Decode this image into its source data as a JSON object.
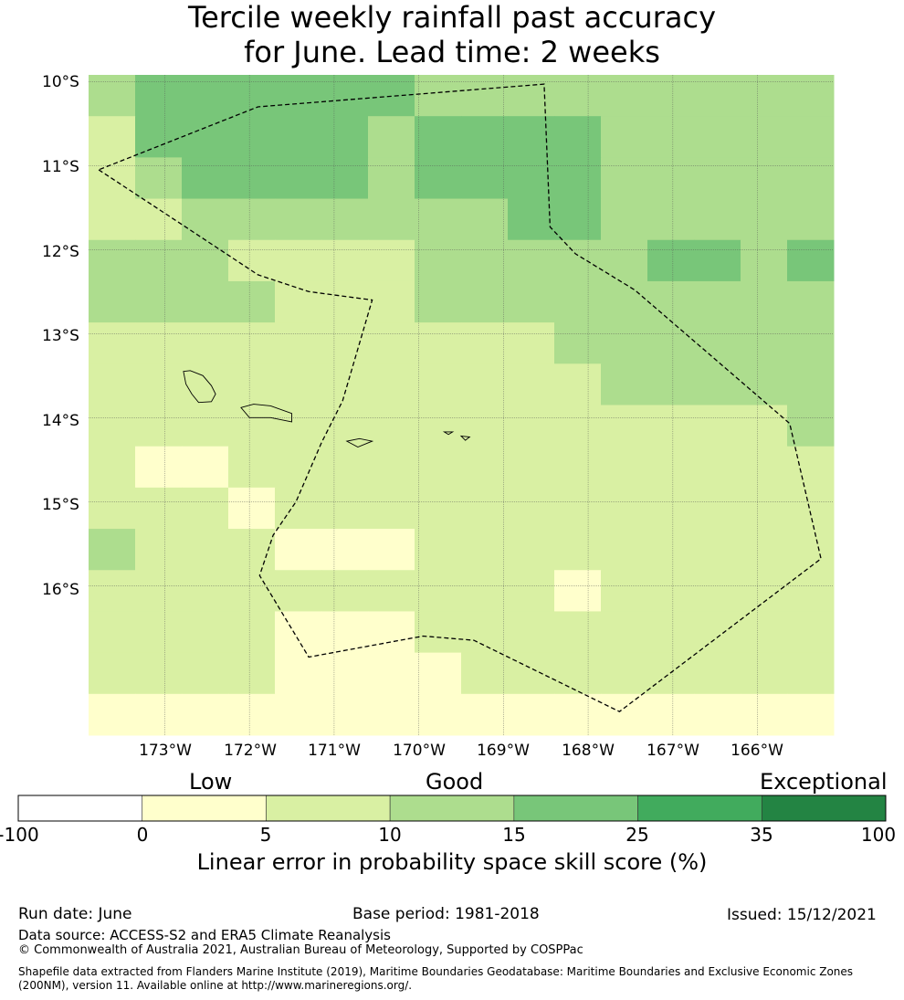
{
  "title_lines": [
    "Tercile weekly rainfall past accuracy",
    "for June. Lead time: 2 weeks"
  ],
  "lat_labels": [
    "10°S",
    "11°S",
    "12°S",
    "13°S",
    "14°S",
    "15°S",
    "16°S"
  ],
  "lon_labels": [
    "173°W",
    "172°W",
    "171°W",
    "170°W",
    "169°W",
    "168°W",
    "167°W",
    "166°W"
  ],
  "map": {
    "extent": {
      "lon_min": -173.9,
      "lon_max": -165.1,
      "lat_min": -17.78,
      "lat_max": -9.92
    },
    "lat_ticks": [
      -10,
      -11,
      -12,
      -13,
      -14,
      -15,
      -16
    ],
    "lon_ticks": [
      -173,
      -172,
      -171,
      -170,
      -169,
      -168,
      -167,
      -166
    ],
    "cell_size_deg": 0.5556,
    "skill_class_grid": [
      [
        2,
        3,
        3,
        3,
        3,
        3,
        3,
        2,
        2,
        2,
        2,
        2,
        2,
        2,
        2,
        2
      ],
      [
        1,
        3,
        3,
        3,
        3,
        3,
        2,
        3,
        3,
        3,
        3,
        2,
        2,
        2,
        2,
        2
      ],
      [
        1,
        2,
        3,
        3,
        3,
        3,
        2,
        3,
        3,
        3,
        3,
        2,
        2,
        2,
        2,
        2
      ],
      [
        1,
        1,
        2,
        2,
        2,
        2,
        2,
        2,
        2,
        3,
        3,
        2,
        2,
        2,
        2,
        2
      ],
      [
        2,
        2,
        2,
        1,
        1,
        1,
        1,
        2,
        2,
        2,
        2,
        2,
        3,
        3,
        2,
        3
      ],
      [
        2,
        2,
        2,
        2,
        1,
        1,
        1,
        2,
        2,
        2,
        2,
        2,
        2,
        2,
        2,
        2
      ],
      [
        1,
        1,
        1,
        1,
        1,
        1,
        1,
        1,
        1,
        1,
        2,
        2,
        2,
        2,
        2,
        2
      ],
      [
        1,
        1,
        1,
        1,
        1,
        1,
        1,
        1,
        1,
        1,
        1,
        2,
        2,
        2,
        2,
        2
      ],
      [
        1,
        1,
        1,
        1,
        1,
        1,
        1,
        1,
        1,
        1,
        1,
        1,
        1,
        1,
        1,
        2
      ],
      [
        1,
        0,
        0,
        1,
        1,
        1,
        1,
        1,
        1,
        1,
        1,
        1,
        1,
        1,
        1,
        1
      ],
      [
        1,
        1,
        1,
        0,
        1,
        1,
        1,
        1,
        1,
        1,
        1,
        1,
        1,
        1,
        1,
        1
      ],
      [
        2,
        1,
        1,
        1,
        0,
        0,
        0,
        1,
        1,
        1,
        1,
        1,
        1,
        1,
        1,
        1
      ],
      [
        1,
        1,
        1,
        1,
        1,
        1,
        1,
        1,
        1,
        1,
        0,
        1,
        1,
        1,
        1,
        1
      ],
      [
        1,
        1,
        1,
        1,
        0,
        0,
        0,
        1,
        1,
        1,
        1,
        1,
        1,
        1,
        1,
        1
      ],
      [
        1,
        1,
        1,
        1,
        0,
        0,
        0,
        0,
        1,
        1,
        1,
        1,
        1,
        1,
        1,
        1
      ],
      [
        0,
        0,
        0,
        0,
        0,
        0,
        0,
        0,
        0,
        0,
        0,
        0,
        0,
        0,
        0,
        0
      ]
    ],
    "eez_boundary": [
      [
        -173.78,
        -11.05
      ],
      [
        -172.8,
        -11.7
      ],
      [
        -171.9,
        -12.3
      ],
      [
        -171.3,
        -12.5
      ],
      [
        -170.55,
        -12.6
      ],
      [
        -170.9,
        -13.8
      ],
      [
        -171.15,
        -14.3
      ],
      [
        -171.45,
        -15.0
      ],
      [
        -171.72,
        -15.4
      ],
      [
        -171.88,
        -15.88
      ],
      [
        -171.3,
        -16.85
      ],
      [
        -169.95,
        -16.6
      ],
      [
        -169.35,
        -16.65
      ],
      [
        -167.63,
        -17.5
      ],
      [
        -165.25,
        -15.68
      ],
      [
        -165.62,
        -14.07
      ],
      [
        -167.45,
        -12.48
      ],
      [
        -168.15,
        -12.05
      ],
      [
        -168.45,
        -11.73
      ],
      [
        -168.52,
        -10.03
      ],
      [
        -171.9,
        -10.3
      ],
      [
        -173.78,
        -11.05
      ]
    ],
    "islands": [
      {
        "name": "Savaii",
        "coords": [
          [
            -172.78,
            -13.45
          ],
          [
            -172.7,
            -13.44
          ],
          [
            -172.55,
            -13.5
          ],
          [
            -172.45,
            -13.62
          ],
          [
            -172.4,
            -13.72
          ],
          [
            -172.45,
            -13.81
          ],
          [
            -172.6,
            -13.82
          ],
          [
            -172.68,
            -13.72
          ],
          [
            -172.75,
            -13.6
          ],
          [
            -172.78,
            -13.45
          ]
        ]
      },
      {
        "name": "Upolu",
        "coords": [
          [
            -172.1,
            -13.88
          ],
          [
            -171.95,
            -13.84
          ],
          [
            -171.75,
            -13.86
          ],
          [
            -171.5,
            -13.95
          ],
          [
            -171.5,
            -14.05
          ],
          [
            -171.75,
            -14.0
          ],
          [
            -172.0,
            -14.0
          ],
          [
            -172.1,
            -13.88
          ]
        ]
      },
      {
        "name": "Tutuila",
        "coords": [
          [
            -170.85,
            -14.28
          ],
          [
            -170.7,
            -14.25
          ],
          [
            -170.55,
            -14.28
          ],
          [
            -170.72,
            -14.35
          ],
          [
            -170.85,
            -14.28
          ]
        ]
      },
      {
        "name": "Ofu",
        "coords": [
          [
            -169.7,
            -14.17
          ],
          [
            -169.6,
            -14.17
          ],
          [
            -169.65,
            -14.2
          ],
          [
            -169.7,
            -14.17
          ]
        ]
      },
      {
        "name": "Tau",
        "coords": [
          [
            -169.5,
            -14.22
          ],
          [
            -169.4,
            -14.23
          ],
          [
            -169.45,
            -14.27
          ],
          [
            -169.5,
            -14.22
          ]
        ]
      }
    ]
  },
  "colorbar": {
    "headings": [
      "Low",
      "Good",
      "Exceptional"
    ],
    "ticks": [
      "-100",
      "0",
      "5",
      "10",
      "15",
      "25",
      "35",
      "100"
    ],
    "colors": [
      "#ffffff",
      "#ffffcc",
      "#d9f0a3",
      "#addd8e",
      "#78c679",
      "#41ab5d",
      "#238443"
    ],
    "title": "Linear error in probability space skill score (%)"
  },
  "footer": {
    "run_date": "Run date: June",
    "base_period": "Base period: 1981-2018",
    "issued": "Issued: 15/12/2021",
    "data_source": "Data source: ACCESS-S2 and ERA5 Climate Reanalysis",
    "copyright": "© Commonwealth of Australia 2021, Australian Bureau of Meteorology, Supported by COSPPac",
    "shapefile": "Shapefile data extracted from Flanders Marine Institute (2019), Maritime Boundaries Geodatabase: Maritime Boundaries and Exclusive Economic Zones (200NM), version 11. Available online at http://www.marineregions.org/."
  }
}
